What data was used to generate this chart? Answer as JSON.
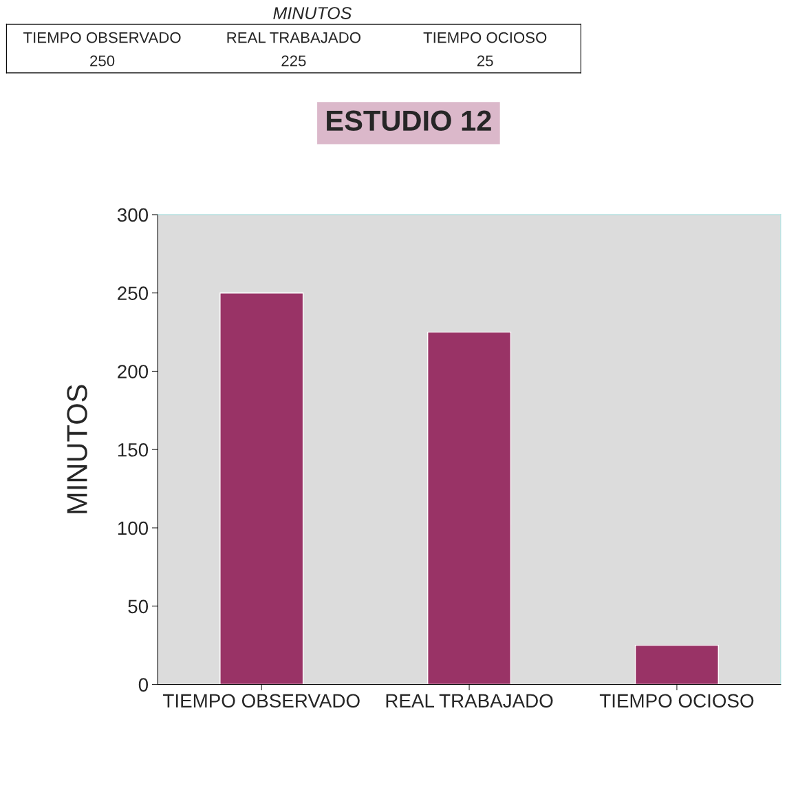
{
  "chart_data": {
    "type": "bar",
    "title": "ESTUDIO 12",
    "ylabel": "MINUTOS",
    "annotations": [
      "MINUTOS",
      "250",
      "225",
      "25"
    ],
    "categories": [
      "TIEMPO OBSERVADO",
      "REAL TRABAJADO",
      "TIEMPO OCIOSO"
    ],
    "values": [
      250,
      225,
      25
    ],
    "color": "#993366",
    "ylim": [
      0,
      300
    ],
    "yticks": [
      0,
      50,
      100,
      150,
      200,
      250,
      300
    ],
    "grid": false,
    "legend": false
  }
}
